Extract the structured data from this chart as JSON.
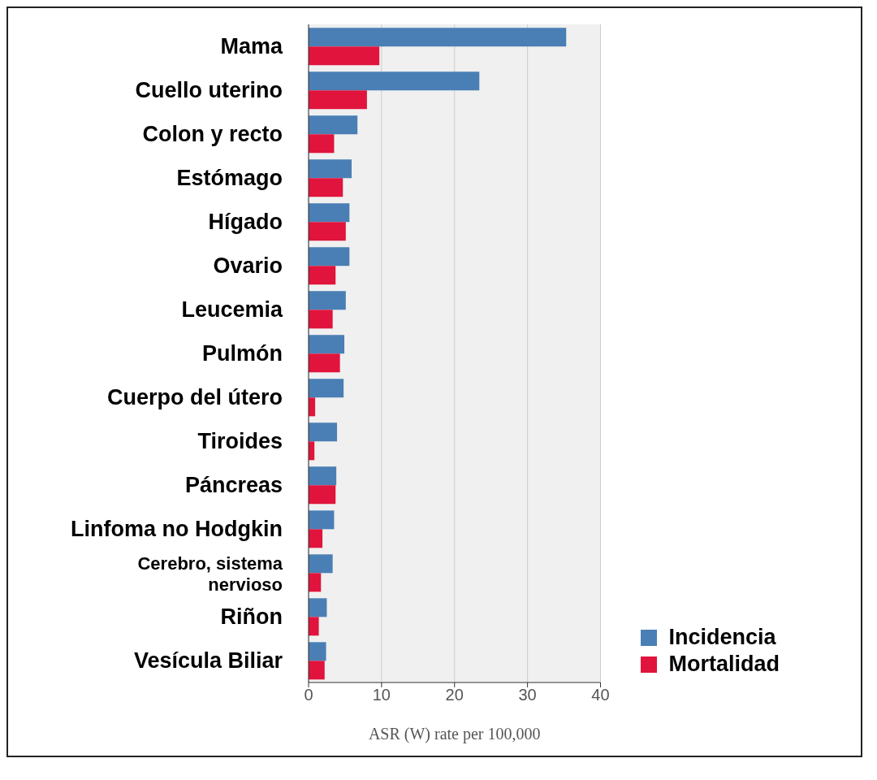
{
  "chart_data": {
    "type": "bar",
    "orientation": "horizontal",
    "xlabel": "ASR (W) rate per 100,000",
    "categories": [
      "Mama",
      "Cuello uterino",
      "Colon y recto",
      "Estómago",
      "Hígado",
      "Ovario",
      "Leucemia",
      "Pulmón",
      "Cuerpo del útero",
      "Tiroides",
      "Páncreas",
      "Linfoma no Hodgkin",
      "Cerebro, sistema nervioso",
      "Riñon",
      "Vesícula Biliar"
    ],
    "series": [
      {
        "name": "Incidencia",
        "color": "#4a7fb5",
        "values": [
          35.3,
          23.4,
          6.7,
          5.9,
          5.6,
          5.6,
          5.1,
          4.9,
          4.8,
          3.9,
          3.8,
          3.5,
          3.3,
          2.5,
          2.4
        ]
      },
      {
        "name": "Mortalidad",
        "color": "#e0143c",
        "values": [
          9.7,
          8.0,
          3.5,
          4.7,
          5.1,
          3.7,
          3.3,
          4.3,
          0.9,
          0.8,
          3.7,
          1.9,
          1.7,
          1.4,
          2.2
        ]
      }
    ],
    "xlim": [
      0,
      40
    ],
    "xticks": [
      0,
      10,
      20,
      30,
      40
    ],
    "grid": "x",
    "legend": "bottom right"
  }
}
